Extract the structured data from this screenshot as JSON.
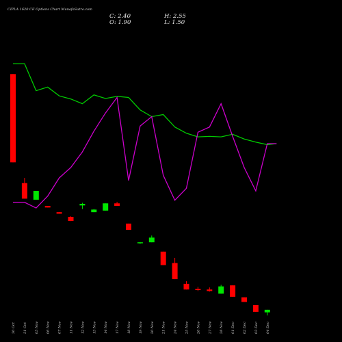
{
  "chart_data": {
    "type": "candlestick",
    "title": "CIPLA 1620  CE Options  Chart MunafaSutra.com",
    "ohlc_readout": {
      "close": "C: 2.40",
      "open": "O: 1.90",
      "high": "H: 2.55",
      "low": "L: 1.50"
    },
    "colors": {
      "up": "#00e600",
      "down": "#ff0000",
      "green_line": "#00cc00",
      "magenta_line": "#cc00cc",
      "background": "#000000"
    },
    "categories": [
      "30 Oct",
      "31 Oct",
      "05 Nov",
      "06 Nov",
      "07 Nov",
      "11 Nov",
      "12 Nov",
      "13 Nov",
      "14 Nov",
      "17 Nov",
      "18 Nov",
      "19 Nov",
      "20 Nov",
      "21 Nov",
      "24 Nov",
      "25 Nov",
      "26 Nov",
      "27 Nov",
      "28 Nov",
      "01 Dec",
      "02 Dec",
      "03 Dec",
      "04 Dec"
    ],
    "candles": [
      {
        "o": 33.0,
        "h": 33.0,
        "l": 16.0,
        "c": 16.0
      },
      {
        "o": 12.0,
        "h": 13.0,
        "l": 9.0,
        "c": 9.0
      },
      {
        "o": 8.8,
        "h": 10.5,
        "l": 8.8,
        "c": 10.5
      },
      {
        "o": 7.6,
        "h": 7.6,
        "l": 7.3,
        "c": 7.3
      },
      {
        "o": 6.4,
        "h": 6.4,
        "l": 6.1,
        "c": 6.1
      },
      {
        "o": 5.5,
        "h": 5.6,
        "l": 4.7,
        "c": 4.7
      },
      {
        "o": 7.7,
        "h": 8.2,
        "l": 7.0,
        "c": 8.0
      },
      {
        "o": 6.4,
        "h": 7.0,
        "l": 6.4,
        "c": 6.9
      },
      {
        "o": 6.7,
        "h": 8.1,
        "l": 6.7,
        "c": 8.1
      },
      {
        "o": 8.1,
        "h": 8.4,
        "l": 7.6,
        "c": 7.6
      },
      {
        "o": 4.2,
        "h": 4.2,
        "l": 3.0,
        "c": 3.0
      },
      {
        "o": 0.4,
        "h": 0.6,
        "l": 0.3,
        "c": 0.6
      },
      {
        "o": 0.6,
        "h": 1.9,
        "l": 0.6,
        "c": 1.5
      },
      {
        "o": -1.2,
        "h": -1.2,
        "l": -3.8,
        "c": -3.8
      },
      {
        "o": -3.4,
        "h": -2.4,
        "l": -6.5,
        "c": -6.5
      },
      {
        "o": -7.4,
        "h": -6.9,
        "l": -8.5,
        "c": -8.5
      },
      {
        "o": -8.4,
        "h": -8.0,
        "l": -8.8,
        "c": -8.6
      },
      {
        "o": -8.5,
        "h": -8.1,
        "l": -8.9,
        "c": -8.8
      },
      {
        "o": -9.3,
        "h": -7.6,
        "l": -9.3,
        "c": -7.9
      },
      {
        "o": -7.7,
        "h": -7.7,
        "l": -9.9,
        "c": -9.9
      },
      {
        "o": -10.0,
        "h": -10.0,
        "l": -10.9,
        "c": -10.9
      },
      {
        "o": -11.5,
        "h": -11.5,
        "l": -12.8,
        "c": -12.8
      },
      {
        "o": -12.9,
        "h": -12.4,
        "l": -13.5,
        "c": -12.4
      }
    ],
    "green_line": [
      35.0,
      35.0,
      29.8,
      30.5,
      28.8,
      28.2,
      27.3,
      29.0,
      28.3,
      28.7,
      28.5,
      26.1,
      24.8,
      25.2,
      22.8,
      21.6,
      20.9,
      21.0,
      20.9,
      21.4,
      20.5,
      19.9,
      19.4,
      19.6
    ],
    "magenta_line": [
      8.3,
      8.3,
      7.2,
      9.5,
      13.0,
      15.0,
      18.0,
      22.0,
      25.5,
      28.5,
      12.5,
      23.0,
      24.8,
      13.5,
      8.7,
      11.0,
      21.8,
      22.8,
      27.3,
      21.0,
      15.0,
      10.5,
      19.6,
      19.6
    ],
    "line_x": [
      0.0,
      1.0,
      2.0,
      3.0,
      4.0,
      5.0,
      6.0,
      7.0,
      8.0,
      9.0,
      10.0,
      11.0,
      12.0,
      13.0,
      14.0,
      15.0,
      16.0,
      17.0,
      18.0,
      19.0,
      20.0,
      21.0,
      22.0,
      22.8
    ],
    "ylim": [
      -14,
      42
    ]
  }
}
